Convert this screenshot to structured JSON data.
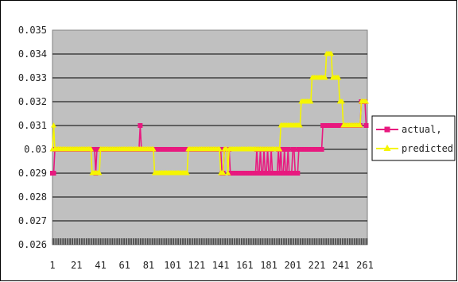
{
  "chart_data": {
    "type": "line",
    "title": "",
    "xlabel": "",
    "ylabel": "",
    "ylim": [
      0.026,
      0.035
    ],
    "xlim": [
      1,
      263
    ],
    "grid": true,
    "legend_position": "right",
    "y_ticks": [
      "0.026",
      "0.027",
      "0.028",
      "0.029",
      "0.03",
      "0.031",
      "0.032",
      "0.033",
      "0.034",
      "0.035"
    ],
    "x_ticks": [
      "1",
      "21",
      "41",
      "61",
      "81",
      "101",
      "121",
      "141",
      "161",
      "181",
      "201",
      "221",
      "241",
      "261"
    ],
    "series": [
      {
        "name": "actual,",
        "color": "#e8197f",
        "marker": "square",
        "segments": [
          [
            1,
            0.029
          ],
          [
            2,
            0.029
          ],
          [
            3,
            0.03
          ],
          [
            36,
            0.03
          ],
          [
            37,
            0.029
          ],
          [
            38,
            0.03
          ],
          [
            41,
            0.03
          ],
          [
            42,
            0.03
          ],
          [
            73,
            0.03
          ],
          [
            74,
            0.031
          ],
          [
            75,
            0.03
          ],
          [
            141,
            0.03
          ],
          [
            142,
            0.029
          ],
          [
            143,
            0.029
          ],
          [
            144,
            0.03
          ],
          [
            148,
            0.03
          ],
          [
            149,
            0.029
          ],
          [
            170,
            0.029
          ],
          [
            171,
            0.03
          ],
          [
            172,
            0.029
          ],
          [
            174,
            0.03
          ],
          [
            175,
            0.029
          ],
          [
            177,
            0.03
          ],
          [
            178,
            0.029
          ],
          [
            180,
            0.03
          ],
          [
            181,
            0.029
          ],
          [
            183,
            0.03
          ],
          [
            184,
            0.029
          ],
          [
            188,
            0.029
          ],
          [
            189,
            0.03
          ],
          [
            190,
            0.029
          ],
          [
            191,
            0.03
          ],
          [
            192,
            0.029
          ],
          [
            194,
            0.03
          ],
          [
            195,
            0.029
          ],
          [
            197,
            0.03
          ],
          [
            198,
            0.029
          ],
          [
            200,
            0.029
          ],
          [
            201,
            0.03
          ],
          [
            203,
            0.029
          ],
          [
            205,
            0.029
          ],
          [
            206,
            0.03
          ],
          [
            225,
            0.03
          ],
          [
            226,
            0.031
          ],
          [
            246,
            0.031
          ],
          [
            247,
            0.031
          ],
          [
            257,
            0.031
          ],
          [
            258,
            0.032
          ],
          [
            260,
            0.032
          ],
          [
            262,
            0.031
          ]
        ]
      },
      {
        "name": "predicted",
        "color": "#f5f500",
        "marker": "triangle",
        "segments": [
          [
            1,
            0.03
          ],
          [
            2,
            0.031
          ],
          [
            3,
            0.03
          ],
          [
            33,
            0.03
          ],
          [
            34,
            0.029
          ],
          [
            40,
            0.029
          ],
          [
            41,
            0.03
          ],
          [
            85,
            0.03
          ],
          [
            86,
            0.029
          ],
          [
            113,
            0.029
          ],
          [
            114,
            0.03
          ],
          [
            140,
            0.03
          ],
          [
            141,
            0.029
          ],
          [
            143,
            0.029
          ],
          [
            144,
            0.03
          ],
          [
            146,
            0.03
          ],
          [
            147,
            0.029
          ],
          [
            148,
            0.03
          ],
          [
            190,
            0.03
          ],
          [
            191,
            0.031
          ],
          [
            207,
            0.031
          ],
          [
            208,
            0.032
          ],
          [
            216,
            0.032
          ],
          [
            217,
            0.033
          ],
          [
            228,
            0.033
          ],
          [
            229,
            0.034
          ],
          [
            233,
            0.034
          ],
          [
            234,
            0.033
          ],
          [
            239,
            0.033
          ],
          [
            240,
            0.032
          ],
          [
            242,
            0.032
          ],
          [
            243,
            0.031
          ],
          [
            257,
            0.031
          ],
          [
            258,
            0.032
          ],
          [
            262,
            0.032
          ]
        ]
      }
    ]
  }
}
